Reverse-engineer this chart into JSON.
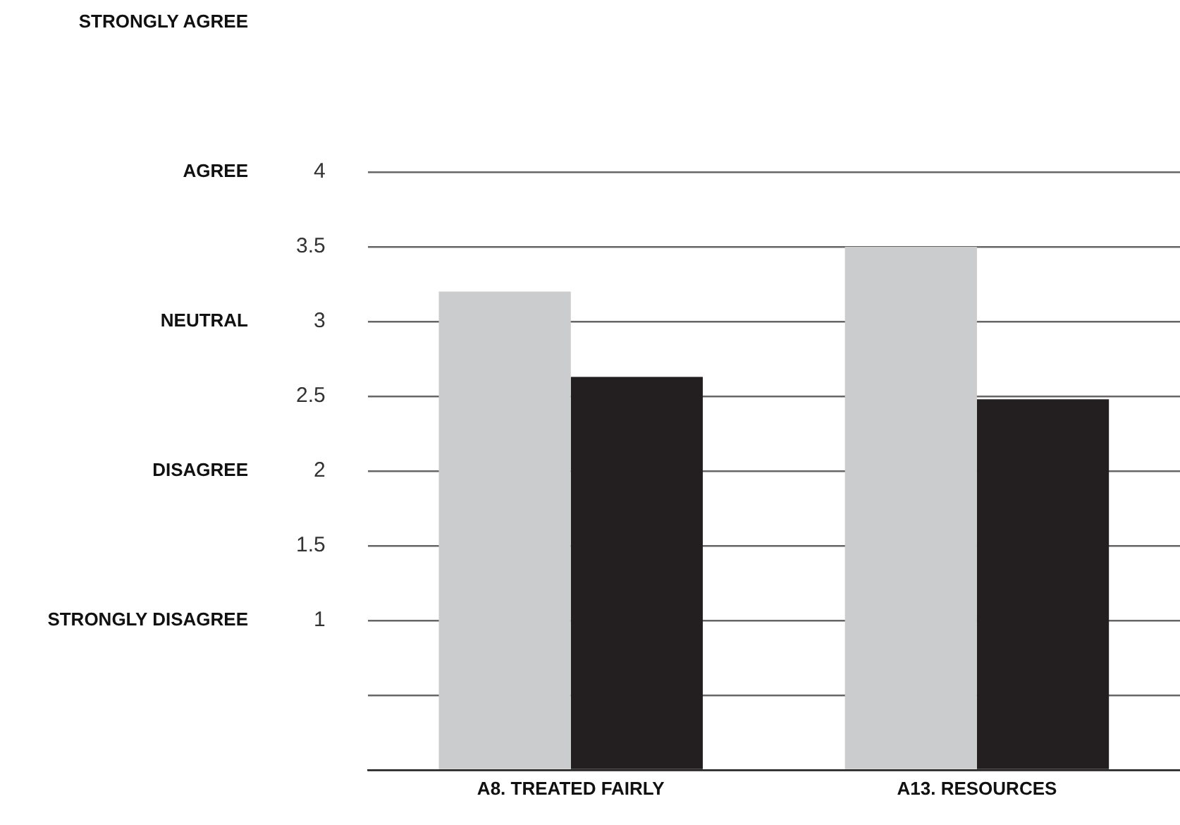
{
  "chart_data": {
    "type": "bar",
    "categories": [
      "A8. TREATED FAIRLY",
      "A13. RESOURCES"
    ],
    "series": [
      {
        "color": "#cbcccd",
        "values": [
          3.2,
          3.5
        ]
      },
      {
        "color": "#231f20",
        "values": [
          2.63,
          2.48
        ]
      }
    ],
    "ylim": [
      0,
      4
    ],
    "yticks": [
      {
        "value": 0,
        "label": null
      },
      {
        "value": 0.5,
        "label": null
      },
      1,
      1.5,
      2,
      2.5,
      3,
      3.5,
      4
    ],
    "annotations": [
      "STRONGLY DISAGREE",
      "DISAGREE",
      "NEUTRAL",
      "AGREE",
      "STRONGLY AGREE"
    ],
    "grid": "y",
    "legend": false
  }
}
